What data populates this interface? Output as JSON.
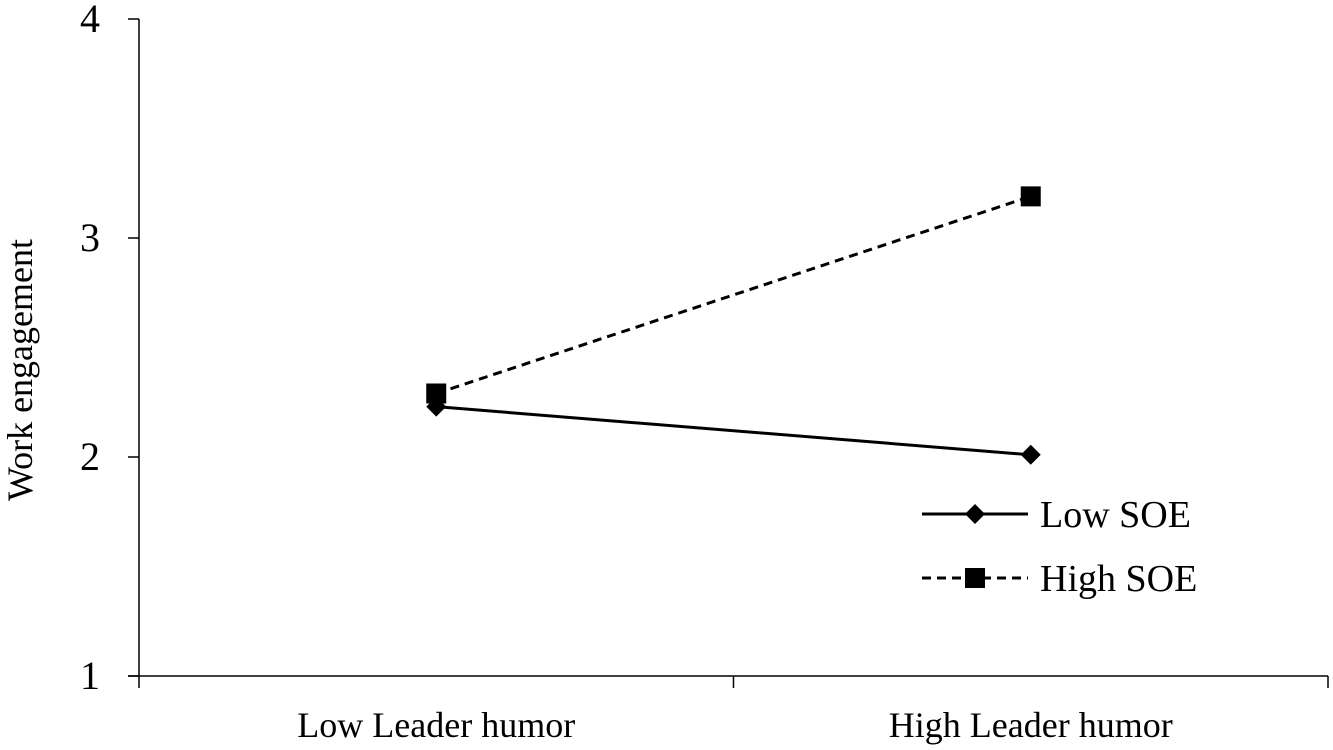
{
  "chart_data": {
    "type": "line",
    "title": "",
    "xlabel": "",
    "ylabel": "Work engagement",
    "categories": [
      "Low Leader humor",
      "High Leader humor"
    ],
    "ylim": [
      1,
      4
    ],
    "yticks": [
      "1",
      "2",
      "3",
      "4"
    ],
    "grid": false,
    "legend_position": "bottom-right",
    "series": [
      {
        "name": "Low SOE",
        "values": [
          2.23,
          2.01
        ],
        "marker": "diamond",
        "line_style": "solid",
        "color": "#000000"
      },
      {
        "name": "High SOE",
        "values": [
          2.29,
          3.19
        ],
        "marker": "square",
        "line_style": "dashed",
        "color": "#000000"
      }
    ]
  }
}
